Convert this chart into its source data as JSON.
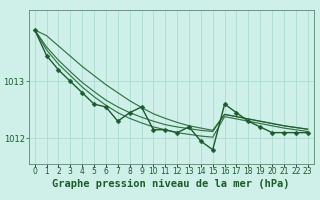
{
  "title": "Graphe pression niveau de la mer (hPa)",
  "background_color": "#cef0e8",
  "grid_color": "#aaddd0",
  "line_color": "#1a5c2a",
  "hours": [
    0,
    1,
    2,
    3,
    4,
    5,
    6,
    7,
    8,
    9,
    10,
    11,
    12,
    13,
    14,
    15,
    16,
    17,
    18,
    19,
    20,
    21,
    22,
    23
  ],
  "series_main": [
    1013.9,
    1013.45,
    1013.2,
    1013.0,
    1012.8,
    1012.6,
    1012.55,
    1012.3,
    1012.45,
    1012.55,
    1012.15,
    1012.15,
    1012.1,
    1012.2,
    1011.95,
    1011.8,
    1012.6,
    1012.45,
    1012.3,
    1012.2,
    1012.1,
    1012.1,
    1012.1,
    1012.1
  ],
  "series_smooth1": [
    1013.9,
    1013.55,
    1013.3,
    1013.1,
    1012.9,
    1012.73,
    1012.58,
    1012.45,
    1012.35,
    1012.27,
    1012.2,
    1012.15,
    1012.1,
    1012.07,
    1012.04,
    1012.02,
    1012.38,
    1012.34,
    1012.3,
    1012.26,
    1012.22,
    1012.18,
    1012.15,
    1012.12
  ],
  "series_smooth2": [
    1013.9,
    1013.6,
    1013.37,
    1013.17,
    1012.98,
    1012.82,
    1012.67,
    1012.55,
    1012.45,
    1012.37,
    1012.3,
    1012.24,
    1012.2,
    1012.17,
    1012.14,
    1012.12,
    1012.42,
    1012.38,
    1012.34,
    1012.3,
    1012.26,
    1012.22,
    1012.19,
    1012.16
  ],
  "series_linear": [
    1013.9,
    1013.8,
    1013.62,
    1013.44,
    1013.26,
    1013.1,
    1012.94,
    1012.8,
    1012.66,
    1012.54,
    1012.43,
    1012.35,
    1012.28,
    1012.22,
    1012.18,
    1012.14,
    1012.42,
    1012.38,
    1012.34,
    1012.3,
    1012.26,
    1012.22,
    1012.19,
    1012.16
  ],
  "yticks": [
    1012,
    1013
  ],
  "ylim": [
    1011.55,
    1014.25
  ],
  "xlim": [
    -0.5,
    23.5
  ],
  "markersize": 2.5,
  "linewidth": 1.0,
  "title_fontsize": 7.5,
  "tick_fontsize": 6.0,
  "tick_color": "#1a5c2a",
  "spine_color": "#5a8a6a"
}
